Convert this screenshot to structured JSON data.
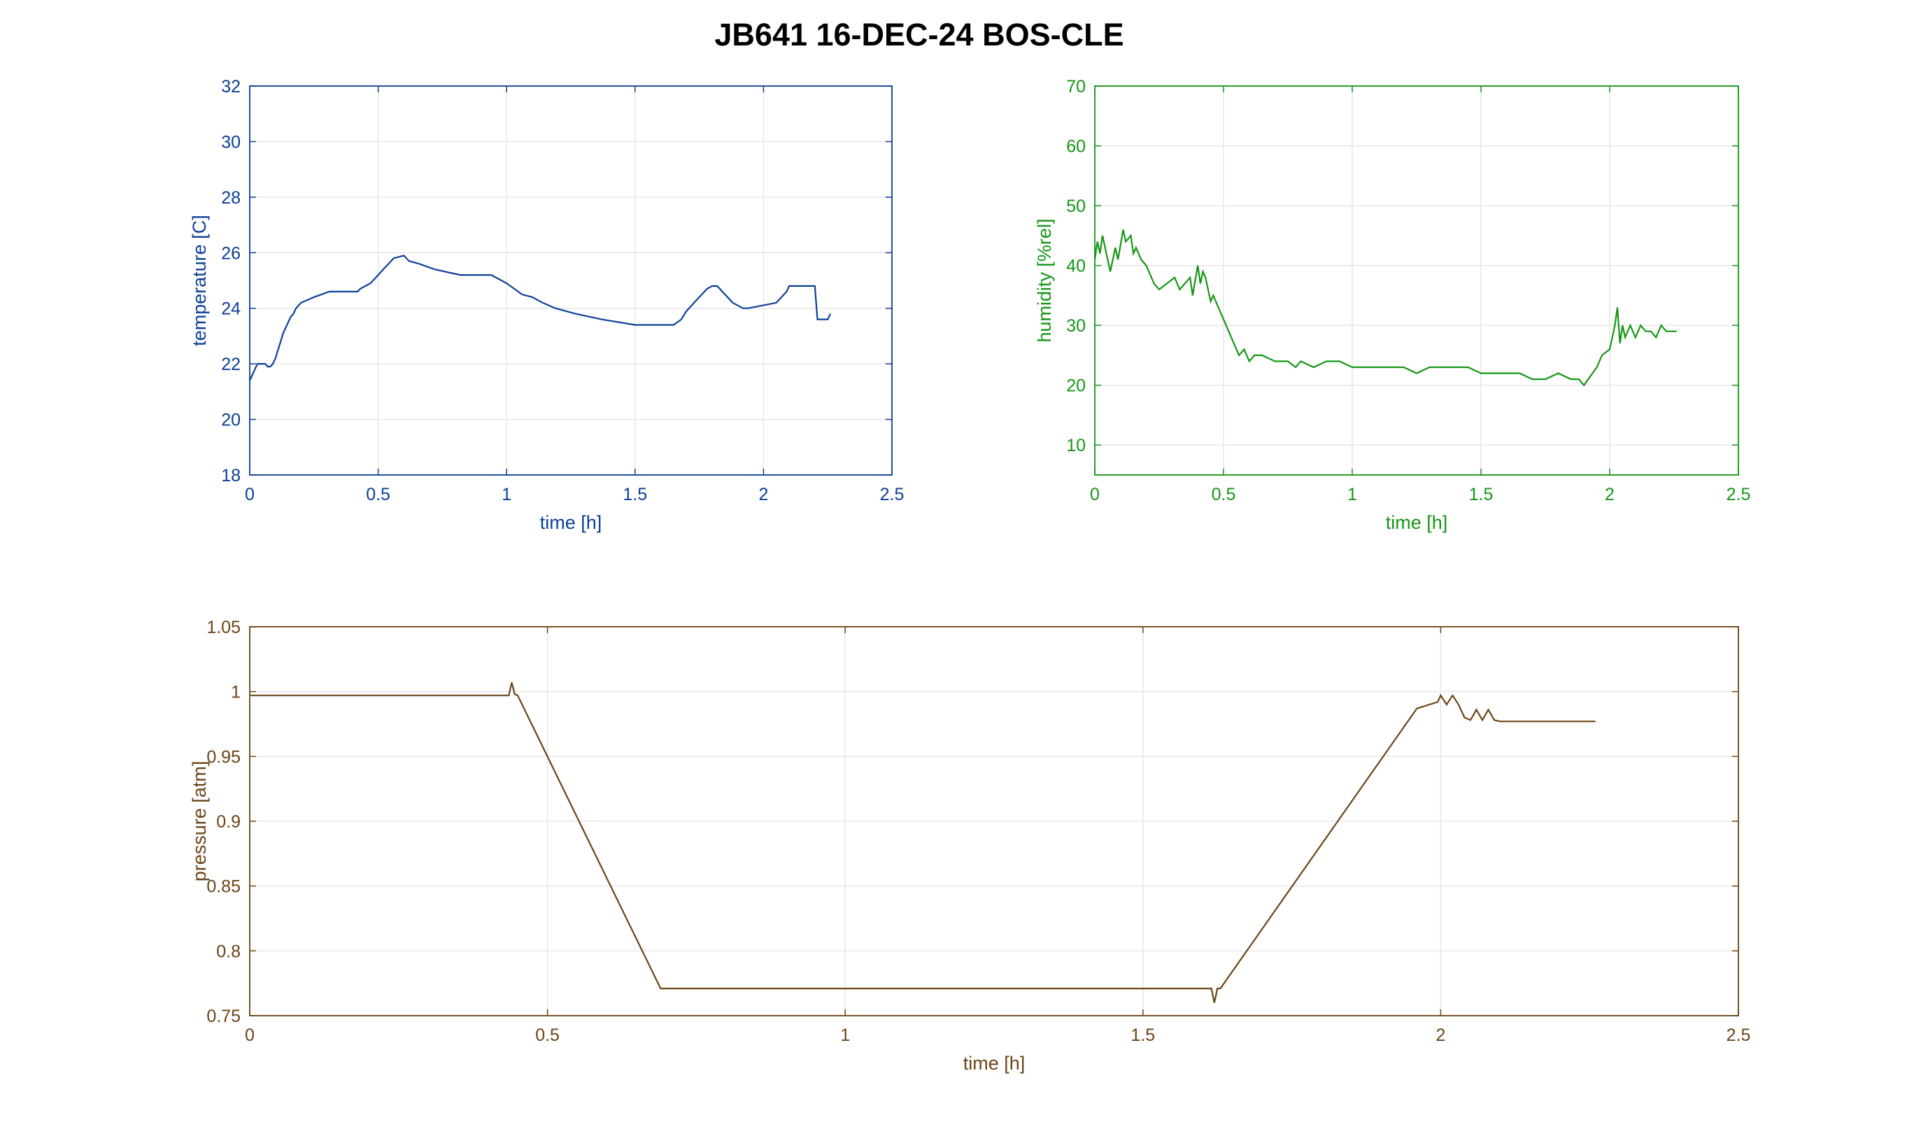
{
  "figure_title": "JB641 16-DEC-24 BOS-CLE",
  "chart_data": [
    {
      "type": "line",
      "title": "",
      "xlabel": "time [h]",
      "ylabel": "temperature [C]",
      "xlim": [
        0,
        2.5
      ],
      "ylim": [
        18,
        32
      ],
      "xticks": [
        "0",
        "0.5",
        "1",
        "1.5",
        "2",
        "2.5"
      ],
      "yticks": [
        "18",
        "20",
        "22",
        "24",
        "26",
        "28",
        "30",
        "32"
      ],
      "grid": true,
      "color": "#0b3f96",
      "series": [
        {
          "x": [
            0,
            0.01,
            0.02,
            0.03,
            0.06,
            0.07,
            0.08,
            0.09,
            0.1,
            0.11,
            0.12,
            0.13,
            0.14,
            0.15,
            0.16,
            0.17,
            0.18,
            0.2,
            0.25,
            0.31,
            0.42,
            0.43,
            0.45,
            0.47,
            0.48,
            0.5,
            0.51,
            0.52,
            0.53,
            0.54,
            0.56,
            0.6,
            0.62,
            0.66,
            0.72,
            0.82,
            0.94,
            0.98,
            1.0,
            1.03,
            1.06,
            1.1,
            1.14,
            1.19,
            1.27,
            1.37,
            1.5,
            1.65,
            1.68,
            1.7,
            1.72,
            1.74,
            1.76,
            1.78,
            1.8,
            1.82,
            1.84,
            1.86,
            1.88,
            1.9,
            1.92,
            1.94,
            2.05,
            2.07,
            2.09,
            2.1,
            2.12,
            2.14,
            2.2,
            2.21,
            2.22,
            2.24,
            2.25,
            2.26
          ],
          "y": [
            21.4,
            21.6,
            21.8,
            22.0,
            22.0,
            21.9,
            21.9,
            22.0,
            22.2,
            22.5,
            22.8,
            23.1,
            23.3,
            23.5,
            23.7,
            23.8,
            24.0,
            24.2,
            24.4,
            24.6,
            24.6,
            24.7,
            24.8,
            24.9,
            25.0,
            25.2,
            25.3,
            25.4,
            25.5,
            25.6,
            25.8,
            25.9,
            25.7,
            25.6,
            25.4,
            25.2,
            25.2,
            25.0,
            24.9,
            24.7,
            24.5,
            24.4,
            24.2,
            24.0,
            23.8,
            23.6,
            23.4,
            23.4,
            23.6,
            23.9,
            24.1,
            24.3,
            24.5,
            24.7,
            24.8,
            24.8,
            24.6,
            24.4,
            24.2,
            24.1,
            24.0,
            24.0,
            24.2,
            24.4,
            24.6,
            24.8,
            24.8,
            24.8,
            24.8,
            23.6,
            23.6,
            23.6,
            23.6,
            23.8
          ]
        }
      ]
    },
    {
      "type": "line",
      "title": "",
      "xlabel": "time [h]",
      "ylabel": "humidity [%rel]",
      "xlim": [
        0,
        2.5
      ],
      "ylim": [
        5,
        70
      ],
      "xticks": [
        "0",
        "0.5",
        "1",
        "1.5",
        "2",
        "2.5"
      ],
      "yticks": [
        "10",
        "20",
        "30",
        "40",
        "50",
        "60",
        "70"
      ],
      "grid": true,
      "color": "#159615",
      "series": [
        {
          "x": [
            0,
            0.01,
            0.02,
            0.03,
            0.05,
            0.06,
            0.08,
            0.09,
            0.11,
            0.12,
            0.14,
            0.15,
            0.16,
            0.18,
            0.2,
            0.23,
            0.25,
            0.28,
            0.31,
            0.33,
            0.35,
            0.37,
            0.38,
            0.4,
            0.41,
            0.42,
            0.43,
            0.44,
            0.45,
            0.46,
            0.48,
            0.5,
            0.52,
            0.54,
            0.56,
            0.58,
            0.6,
            0.62,
            0.65,
            0.7,
            0.75,
            0.78,
            0.8,
            0.85,
            0.9,
            0.95,
            1.0,
            1.05,
            1.1,
            1.15,
            1.2,
            1.25,
            1.3,
            1.35,
            1.4,
            1.45,
            1.5,
            1.55,
            1.6,
            1.65,
            1.7,
            1.75,
            1.8,
            1.85,
            1.88,
            1.9,
            1.95,
            1.97,
            2.0,
            2.01,
            2.02,
            2.03,
            2.04,
            2.05,
            2.06,
            2.08,
            2.1,
            2.12,
            2.14,
            2.16,
            2.18,
            2.2,
            2.22,
            2.24,
            2.26
          ],
          "y": [
            41,
            44,
            42,
            45,
            41,
            39,
            43,
            41,
            46,
            44,
            45,
            42,
            43,
            41,
            40,
            37,
            36,
            37,
            38,
            36,
            37,
            38,
            35,
            40,
            37,
            39,
            38,
            36,
            34,
            35,
            33,
            31,
            29,
            27,
            25,
            26,
            24,
            25,
            25,
            24,
            24,
            23,
            24,
            23,
            24,
            24,
            23,
            23,
            23,
            23,
            23,
            22,
            23,
            23,
            23,
            23,
            22,
            22,
            22,
            22,
            21,
            21,
            22,
            21,
            21,
            20,
            23,
            25,
            26,
            28,
            30,
            33,
            27,
            30,
            28,
            30,
            28,
            30,
            29,
            29,
            28,
            30,
            29,
            29,
            29
          ]
        }
      ]
    },
    {
      "type": "line",
      "title": "",
      "xlabel": "time [h]",
      "ylabel": "pressure [atm]",
      "xlim": [
        0,
        2.5
      ],
      "ylim": [
        0.75,
        1.05
      ],
      "xticks": [
        "0",
        "0.5",
        "1",
        "1.5",
        "2",
        "2.5"
      ],
      "yticks": [
        "0.75",
        "0.8",
        "0.85",
        "0.9",
        "0.95",
        "1",
        "1.05"
      ],
      "grid": true,
      "color": "#6b4416",
      "series": [
        {
          "x": [
            0,
            0.435,
            0.44,
            0.445,
            0.45,
            0.69,
            1.6,
            1.615,
            1.62,
            1.625,
            1.63,
            1.96,
            1.995,
            2.0,
            2.01,
            2.02,
            2.03,
            2.04,
            2.05,
            2.06,
            2.07,
            2.08,
            2.09,
            2.1,
            2.26
          ],
          "y": [
            0.997,
            0.997,
            1.007,
            0.998,
            0.997,
            0.771,
            0.771,
            0.771,
            0.76,
            0.771,
            0.771,
            0.987,
            0.992,
            0.997,
            0.99,
            0.997,
            0.99,
            0.98,
            0.978,
            0.986,
            0.978,
            0.986,
            0.978,
            0.977,
            0.977
          ]
        }
      ]
    }
  ]
}
